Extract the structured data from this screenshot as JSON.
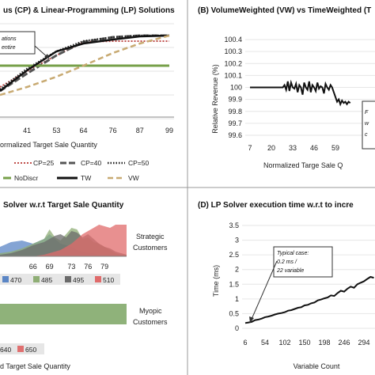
{
  "panels": {
    "a": {
      "title": "us (CP) & Linear-Programming (LP) Solutions",
      "xticks": [
        "41",
        "53",
        "64",
        "76",
        "87",
        "99"
      ],
      "xlabel": "ormalized Target Sale Quantity",
      "annotation": [
        "ations",
        "entire"
      ],
      "legend": [
        "CP=25",
        "CP=40",
        "CP=50",
        "NoDiscr",
        "TW",
        "VW"
      ]
    },
    "b": {
      "title": "(B) VolumeWeighted (VW) vs TimeWeighted (T",
      "ylabel": "Relative Revenue (%)",
      "yticks": [
        "100.4",
        "100.3",
        "100.2",
        "100.1",
        "100",
        "99.9",
        "99.8",
        "99.7",
        "99.6"
      ],
      "xticks": [
        "7",
        "20",
        "33",
        "46",
        "59"
      ],
      "xlabel": "Normalized Targe Sale Q",
      "annotation": [
        "F",
        "w",
        "c"
      ]
    },
    "c": {
      "title": "Solver w.r.t Target Sale Quantity",
      "xticks": [
        "66",
        "69",
        "73",
        "76",
        "79"
      ],
      "strategic_label": [
        "Strategic",
        "Customers"
      ],
      "myopic_label": [
        "Myopic",
        "Customers"
      ],
      "legend_top": [
        "470",
        "485",
        "495",
        "510"
      ],
      "legend_bottom": [
        "640",
        "650"
      ],
      "xlabel": "d Target Sale Quantity"
    },
    "d": {
      "title": "(D) LP Solver execution time w.r.t to incre",
      "ylabel": "Time (ms)",
      "yticks": [
        "3.5",
        "3",
        "2.5",
        "2",
        "1.5",
        "1",
        "0.5",
        "0"
      ],
      "xticks": [
        "6",
        "54",
        "102",
        "150",
        "198",
        "246",
        "294"
      ],
      "xlabel": "Variable Count",
      "annotation": [
        "Typical case:",
        "0.2 ms /",
        "22 variable"
      ]
    }
  },
  "colors": {
    "cp25": "#c0504d",
    "cp40": "#555555",
    "cp50": "#222222",
    "nodiscr": "#77a04a",
    "tw": "#111111",
    "vw": "#c8aa72",
    "strategic_blue": "#5b86c5",
    "strategic_gray": "#6b6b6b",
    "strategic_red": "#e06b6b",
    "strategic_green": "#8fae75",
    "myopic_green": "#8fb27a",
    "myopic_red": "#e07070"
  },
  "chart_data": [
    {
      "type": "line",
      "panel": "a",
      "title": "us (CP) & Linear-Programming (LP) Solutions",
      "xlabel": "ormalized Target Sale Quantity",
      "x": [
        30,
        41,
        53,
        64,
        76,
        87,
        99
      ],
      "series": [
        {
          "name": "CP=25",
          "values": [
            0.35,
            0.55,
            0.75,
            0.92,
            0.93,
            0.93,
            0.93
          ]
        },
        {
          "name": "CP=40",
          "values": [
            0.3,
            0.52,
            0.75,
            0.92,
            0.98,
            1.0,
            1.0
          ]
        },
        {
          "name": "CP=50",
          "values": [
            0.32,
            0.58,
            0.8,
            0.93,
            0.98,
            1.0,
            1.0
          ]
        },
        {
          "name": "NoDiscr",
          "values": [
            0.62,
            0.62,
            0.62,
            0.62,
            0.62,
            0.62,
            0.62
          ]
        },
        {
          "name": "TW",
          "values": [
            0.3,
            0.56,
            0.8,
            0.9,
            0.95,
            0.99,
            1.0
          ]
        },
        {
          "name": "VW",
          "values": [
            0.25,
            0.35,
            0.48,
            0.62,
            0.78,
            0.9,
            1.0
          ]
        }
      ]
    },
    {
      "type": "line",
      "panel": "b",
      "title": "(B) VolumeWeighted (VW) vs TimeWeighted (T",
      "xlabel": "Normalized Targe Sale Q",
      "ylabel": "Relative Revenue (%)",
      "ylim": [
        99.6,
        100.4
      ],
      "xlim": [
        7,
        68
      ],
      "x": [
        7,
        9,
        11,
        13,
        15,
        17,
        19,
        21,
        23,
        25,
        27,
        28,
        29,
        30,
        31,
        32,
        33,
        34,
        35,
        36,
        37,
        38,
        39,
        40,
        41,
        42,
        43,
        44,
        45,
        46,
        47,
        48,
        49,
        50,
        51,
        52,
        53,
        54,
        55,
        56,
        57,
        58,
        59,
        60,
        61,
        62,
        63,
        64,
        65,
        66,
        67,
        68
      ],
      "values": [
        100,
        100,
        100,
        100,
        100,
        100,
        100,
        100,
        100,
        100,
        100,
        100.02,
        99.98,
        100.05,
        99.97,
        100.04,
        100,
        99.99,
        100.03,
        99.96,
        100.02,
        100,
        99.94,
        100.04,
        100,
        99.98,
        100.05,
        99.96,
        100.02,
        100,
        99.97,
        100.04,
        99.99,
        100.01,
        100,
        99.95,
        100.03,
        100,
        99.98,
        100.02,
        100,
        99.96,
        99.92,
        99.88,
        99.9,
        99.86,
        99.89,
        99.87,
        99.88,
        99.86,
        99.88,
        99.87
      ]
    },
    {
      "type": "area",
      "panel": "c",
      "title": "Solver w.r.t Target Sale Quantity",
      "xlabel": "d Target Sale Quantity",
      "x": [
        60,
        62,
        64,
        66,
        68,
        69,
        70,
        71,
        72,
        73,
        74,
        75,
        76,
        77,
        78,
        79,
        80,
        81,
        82,
        83
      ],
      "series": [
        {
          "name": "470",
          "values": [
            0.3,
            0.45,
            0.5,
            0.4,
            0.55,
            0.7,
            0.55,
            0.4,
            0.35,
            0.3,
            0.2,
            0.15,
            0.1,
            0.1,
            0.05,
            0.05,
            0.05,
            0.05,
            0.05,
            0.05
          ]
        },
        {
          "name": "485",
          "values": [
            0.1,
            0.15,
            0.25,
            0.4,
            0.55,
            0.85,
            0.6,
            0.5,
            0.7,
            0.9,
            0.85,
            0.55,
            0.6,
            0.45,
            0.4,
            0.3,
            0.2,
            0.1,
            0.05,
            0.05
          ]
        },
        {
          "name": "495",
          "values": [
            0.05,
            0.1,
            0.2,
            0.35,
            0.45,
            0.55,
            0.65,
            0.7,
            0.6,
            0.8,
            0.75,
            0.6,
            0.7,
            0.55,
            0.4,
            0.3,
            0.25,
            0.15,
            0.1,
            0.05
          ]
        },
        {
          "name": "510",
          "values": [
            0.0,
            0.0,
            0.0,
            0.0,
            0.05,
            0.1,
            0.15,
            0.2,
            0.3,
            0.4,
            0.55,
            0.7,
            0.8,
            0.9,
            1.0,
            0.95,
            0.9,
            1.0,
            1.0,
            1.0
          ]
        },
        {
          "name": "640",
          "values": [
            1,
            1,
            1,
            1,
            1,
            1,
            1,
            1,
            1,
            1,
            1,
            1,
            1,
            1,
            1,
            1,
            1,
            1,
            1,
            1
          ]
        },
        {
          "name": "650",
          "values": [
            0,
            0,
            0,
            0,
            0,
            0,
            0,
            0,
            0,
            0,
            0,
            0,
            0,
            0,
            0,
            0,
            0,
            0,
            0,
            0
          ]
        }
      ]
    },
    {
      "type": "line",
      "panel": "d",
      "title": "(D) LP Solver execution time w.r.t to incre",
      "xlabel": "Variable Count",
      "ylabel": "Time (ms)",
      "ylim": [
        0,
        3.5
      ],
      "xlim": [
        6,
        320
      ],
      "x": [
        6,
        14,
        22,
        30,
        38,
        46,
        54,
        62,
        70,
        78,
        86,
        94,
        102,
        110,
        118,
        126,
        134,
        142,
        150,
        158,
        166,
        174,
        182,
        190,
        198,
        206,
        214,
        222,
        230,
        238,
        246,
        254,
        262,
        270,
        278,
        286,
        294,
        302,
        310,
        318
      ],
      "values": [
        0.18,
        0.2,
        0.22,
        0.28,
        0.3,
        0.33,
        0.38,
        0.4,
        0.43,
        0.47,
        0.5,
        0.52,
        0.55,
        0.6,
        0.62,
        0.66,
        0.7,
        0.72,
        0.78,
        0.8,
        0.85,
        0.88,
        0.95,
        0.98,
        1.02,
        1.05,
        1.12,
        1.1,
        1.2,
        1.28,
        1.25,
        1.35,
        1.42,
        1.38,
        1.5,
        1.55,
        1.6,
        1.68,
        1.75,
        1.72
      ]
    }
  ]
}
